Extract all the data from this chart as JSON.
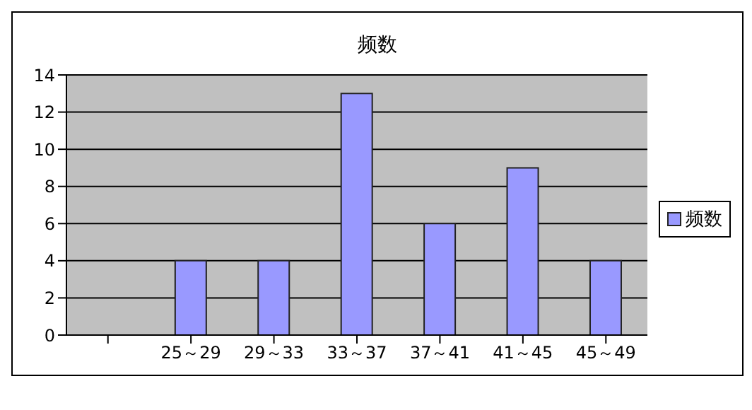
{
  "chart_data": {
    "type": "bar",
    "title": "频数",
    "categories": [
      null,
      "25～29",
      "29～33",
      "33～37",
      "37～41",
      "41～45",
      "45～49"
    ],
    "series": [
      {
        "name": "频数",
        "color": "#9999ff",
        "values": [
          null,
          4,
          4,
          13,
          6,
          9,
          4
        ]
      }
    ],
    "ylim": [
      0,
      14
    ],
    "yticks": [
      0,
      2,
      4,
      6,
      8,
      10,
      12,
      14
    ],
    "grid": "y",
    "legend": "right"
  }
}
